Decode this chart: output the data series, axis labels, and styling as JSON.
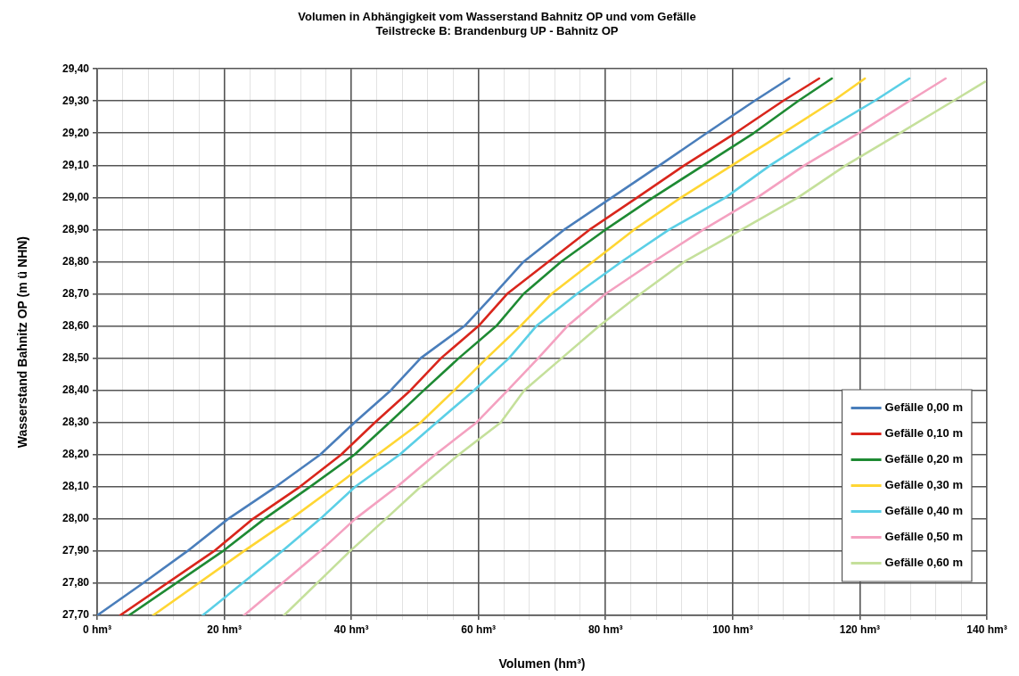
{
  "chart_data": {
    "type": "line",
    "title": "Volumen in Abhängigkeit vom Wasserstand Bahnitz OP und vom Gefälle",
    "subtitle": "Teilstrecke B: Brandenburg UP - Bahnitz OP",
    "xlabel": "Volumen (hm³)",
    "ylabel": "Wasserstand Bahnitz OP (m ü NHN)",
    "xlim": [
      0,
      140
    ],
    "ylim": [
      27.7,
      29.4
    ],
    "xticks": [
      {
        "value": 0,
        "label": "0 hm³"
      },
      {
        "value": 4,
        "label": null
      },
      {
        "value": 8,
        "label": null
      },
      {
        "value": 12,
        "label": null
      },
      {
        "value": 16,
        "label": null
      },
      {
        "value": 20,
        "label": "20 hm³"
      },
      {
        "value": 24,
        "label": null
      },
      {
        "value": 28,
        "label": null
      },
      {
        "value": 32,
        "label": null
      },
      {
        "value": 36,
        "label": null
      },
      {
        "value": 40,
        "label": "40 hm³"
      },
      {
        "value": 44,
        "label": null
      },
      {
        "value": 48,
        "label": null
      },
      {
        "value": 52,
        "label": null
      },
      {
        "value": 56,
        "label": null
      },
      {
        "value": 60,
        "label": "60 hm³"
      },
      {
        "value": 64,
        "label": null
      },
      {
        "value": 68,
        "label": null
      },
      {
        "value": 72,
        "label": null
      },
      {
        "value": 76,
        "label": null
      },
      {
        "value": 80,
        "label": "80 hm³"
      },
      {
        "value": 84,
        "label": null
      },
      {
        "value": 88,
        "label": null
      },
      {
        "value": 92,
        "label": null
      },
      {
        "value": 96,
        "label": null
      },
      {
        "value": 100,
        "label": "100 hm³"
      },
      {
        "value": 104,
        "label": null
      },
      {
        "value": 108,
        "label": null
      },
      {
        "value": 112,
        "label": null
      },
      {
        "value": 116,
        "label": null
      },
      {
        "value": 120,
        "label": "120 hm³"
      },
      {
        "value": 124,
        "label": null
      },
      {
        "value": 128,
        "label": null
      },
      {
        "value": 132,
        "label": null
      },
      {
        "value": 136,
        "label": null
      },
      {
        "value": 140,
        "label": "140 hm³"
      }
    ],
    "yticks": [
      {
        "value": 27.7,
        "label": "27,70"
      },
      {
        "value": 27.8,
        "label": "27,80"
      },
      {
        "value": 27.9,
        "label": "27,90"
      },
      {
        "value": 28.0,
        "label": "28,00"
      },
      {
        "value": 28.1,
        "label": "28,10"
      },
      {
        "value": 28.2,
        "label": "28,20"
      },
      {
        "value": 28.3,
        "label": "28,30"
      },
      {
        "value": 28.4,
        "label": "28,40"
      },
      {
        "value": 28.5,
        "label": "28,50"
      },
      {
        "value": 28.6,
        "label": "28,60"
      },
      {
        "value": 28.7,
        "label": "28,70"
      },
      {
        "value": 28.8,
        "label": "28,80"
      },
      {
        "value": 28.9,
        "label": "28,90"
      },
      {
        "value": 29.0,
        "label": "29,00"
      },
      {
        "value": 29.1,
        "label": "29,10"
      },
      {
        "value": 29.2,
        "label": "29,20"
      },
      {
        "value": 29.3,
        "label": "29,30"
      },
      {
        "value": 29.4,
        "label": "29,40"
      }
    ],
    "grid": true,
    "legend": "bottom right",
    "marker": "none",
    "line_style": "solid",
    "series": [
      {
        "name": "Gefälle 0,00 m",
        "color": "#4a7ebb",
        "x": [
          0,
          7.2,
          14.2,
          20.6,
          28.1,
          35.1,
          40.5,
          46.2,
          50.9,
          57.8,
          62.5,
          67.1,
          73.5,
          81.0,
          88.5,
          95.9,
          103.4,
          108.9
        ],
        "values": [
          27.7,
          27.8,
          27.9,
          28.0,
          28.1,
          28.2,
          28.3,
          28.4,
          28.5,
          28.6,
          28.7,
          28.8,
          28.9,
          29.0,
          29.1,
          29.2,
          29.3,
          29.37
        ]
      },
      {
        "name": "Gefälle 0,10 m",
        "color": "#d9261c",
        "x": [
          3.6,
          18.4,
          24.5,
          31.9,
          38.4,
          43.7,
          49.3,
          54.1,
          60.0,
          64.5,
          71.0,
          77.5,
          85.0,
          92.4,
          100.4,
          107.9,
          113.6
        ],
        "values": [
          27.7,
          27.9,
          28.0,
          28.1,
          28.2,
          28.3,
          28.4,
          28.5,
          28.6,
          28.7,
          28.8,
          28.9,
          29.0,
          29.1,
          29.2,
          29.3,
          29.37
        ]
      },
      {
        "name": "Gefälle 0,20 m",
        "color": "#1e8a33",
        "x": [
          5.0,
          19.8,
          26.3,
          33.5,
          40.5,
          46.0,
          51.4,
          56.9,
          62.8,
          67.1,
          73.0,
          80.0,
          87.5,
          95.4,
          103.3,
          110.3,
          115.6
        ],
        "values": [
          27.7,
          27.9,
          28.0,
          28.1,
          28.2,
          28.3,
          28.4,
          28.5,
          28.6,
          28.7,
          28.8,
          28.9,
          29.0,
          29.1,
          29.2,
          29.3,
          29.37
        ]
      },
      {
        "name": "Gefälle 0,30 m",
        "color": "#ffd633",
        "x": [
          8.8,
          23.1,
          30.5,
          37.4,
          44.1,
          50.9,
          56.2,
          61.3,
          66.6,
          71.5,
          78.0,
          84.5,
          91.9,
          99.9,
          107.9,
          115.8,
          120.8
        ],
        "values": [
          27.7,
          27.9,
          28.0,
          28.1,
          28.2,
          28.3,
          28.4,
          28.5,
          28.6,
          28.7,
          28.8,
          28.9,
          29.0,
          29.1,
          29.2,
          29.3,
          29.37
        ]
      },
      {
        "name": "Gefälle 0,40 m",
        "color": "#5bcfe6",
        "x": [
          16.6,
          29.1,
          35.1,
          40.6,
          47.6,
          53.4,
          59.3,
          64.8,
          69.1,
          75.5,
          82.5,
          90.0,
          98.9,
          105.9,
          113.8,
          122.3,
          127.8
        ],
        "values": [
          27.7,
          27.9,
          28.0,
          28.1,
          28.2,
          28.3,
          28.4,
          28.5,
          28.6,
          28.7,
          28.8,
          28.9,
          29.0,
          29.1,
          29.2,
          29.3,
          29.37
        ]
      },
      {
        "name": "Gefälle 0,50 m",
        "color": "#f4a1c0",
        "x": [
          23.1,
          35.1,
          40.6,
          47.2,
          53.2,
          59.7,
          64.6,
          69.4,
          74.0,
          80.0,
          87.5,
          95.4,
          103.9,
          111.3,
          119.8,
          127.8,
          133.5
        ],
        "values": [
          27.7,
          27.9,
          28.0,
          28.1,
          28.2,
          28.3,
          28.4,
          28.5,
          28.6,
          28.7,
          28.8,
          28.9,
          29.0,
          29.1,
          29.2,
          29.3,
          29.37
        ]
      },
      {
        "name": "Gefälle 0,60 m",
        "color": "#c5e09b",
        "x": [
          29.4,
          39.8,
          45.4,
          50.9,
          56.9,
          63.5,
          67.2,
          73.1,
          79.0,
          85.5,
          92.4,
          101.4,
          110.3,
          117.8,
          126.3,
          134.7,
          139.7
        ],
        "values": [
          27.7,
          27.9,
          28.0,
          28.1,
          28.2,
          28.3,
          28.4,
          28.5,
          28.6,
          28.7,
          28.8,
          28.9,
          29.0,
          29.1,
          29.2,
          29.3,
          29.36
        ]
      }
    ]
  }
}
